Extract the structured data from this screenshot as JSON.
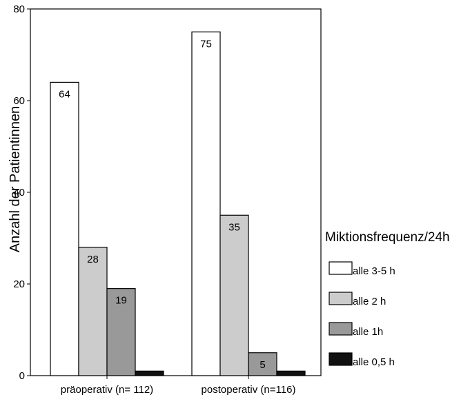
{
  "chart_data": {
    "type": "bar",
    "title": "",
    "xlabel": "",
    "ylabel": "Anzahl der Patientinnen",
    "ylim": [
      0,
      80
    ],
    "yticks": [
      0,
      20,
      40,
      60,
      80
    ],
    "ytick_labels": [
      "0",
      "20",
      "40",
      "60",
      "80"
    ],
    "categories": [
      "präoperativ (n= 112)",
      "postoperativ (n=116)"
    ],
    "series": [
      {
        "name": "alle 3-5 h",
        "values": [
          64,
          75
        ],
        "labels": [
          "64",
          "75"
        ],
        "color": "#ffffff"
      },
      {
        "name": "alle 2 h",
        "values": [
          28,
          35
        ],
        "labels": [
          "28",
          "35"
        ],
        "color": "#cccccc"
      },
      {
        "name": "alle 1h",
        "values": [
          19,
          5
        ],
        "labels": [
          "19",
          "5"
        ],
        "color": "#999999"
      },
      {
        "name": "alle 0,5 h",
        "values": [
          1,
          1
        ],
        "labels": [
          "",
          ""
        ],
        "color": "#111111"
      }
    ],
    "legend": {
      "title": "Miktionsfrequenz/24h",
      "position": "right"
    },
    "grid": false
  }
}
